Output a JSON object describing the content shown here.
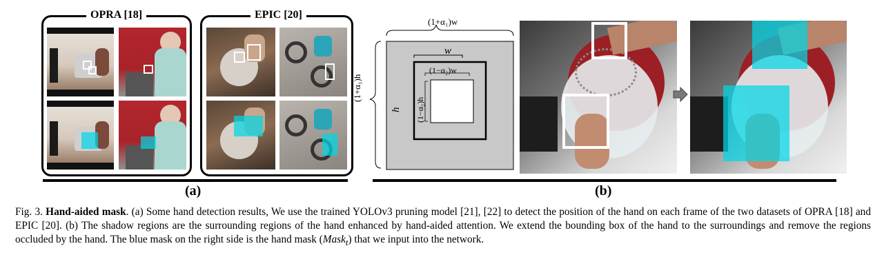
{
  "panel_a": {
    "group_opra": {
      "title": "OPRA [18]"
    },
    "group_epic": {
      "title": "EPIC [20]"
    },
    "label": "(a)"
  },
  "panel_b": {
    "label": "(b)",
    "diagram": {
      "outer_width": "(1+α₁)w",
      "outer_height": "(1+α₁)h",
      "box_width": "w",
      "box_height": "h",
      "inner_width": "(1−α₂)w",
      "inner_height": "(1−α₂)h"
    }
  },
  "caption": {
    "prefix": "Fig. 3.",
    "title": "Hand-aided mask",
    "body": ". (a) Some hand detection results, We use the trained YOLOv3 pruning model [21], [22] to detect the position of the hand on each frame of the two datasets of OPRA [18] and EPIC [20]. (b) The shadow regions are the surrounding regions of the hand enhanced by hand-aided attention. We extend the bounding box of the hand to the surroundings and remove the regions occluded by the hand. The blue mask on the right side is the hand mask (",
    "mask_symbol": "Mask",
    "mask_subscript": "t",
    "body_end": ") that we input into the network."
  },
  "colors": {
    "cyan_mask": "#00d7e6",
    "diagram_gray": "#c8c8c8",
    "kitchen_red": "#b3262d"
  }
}
